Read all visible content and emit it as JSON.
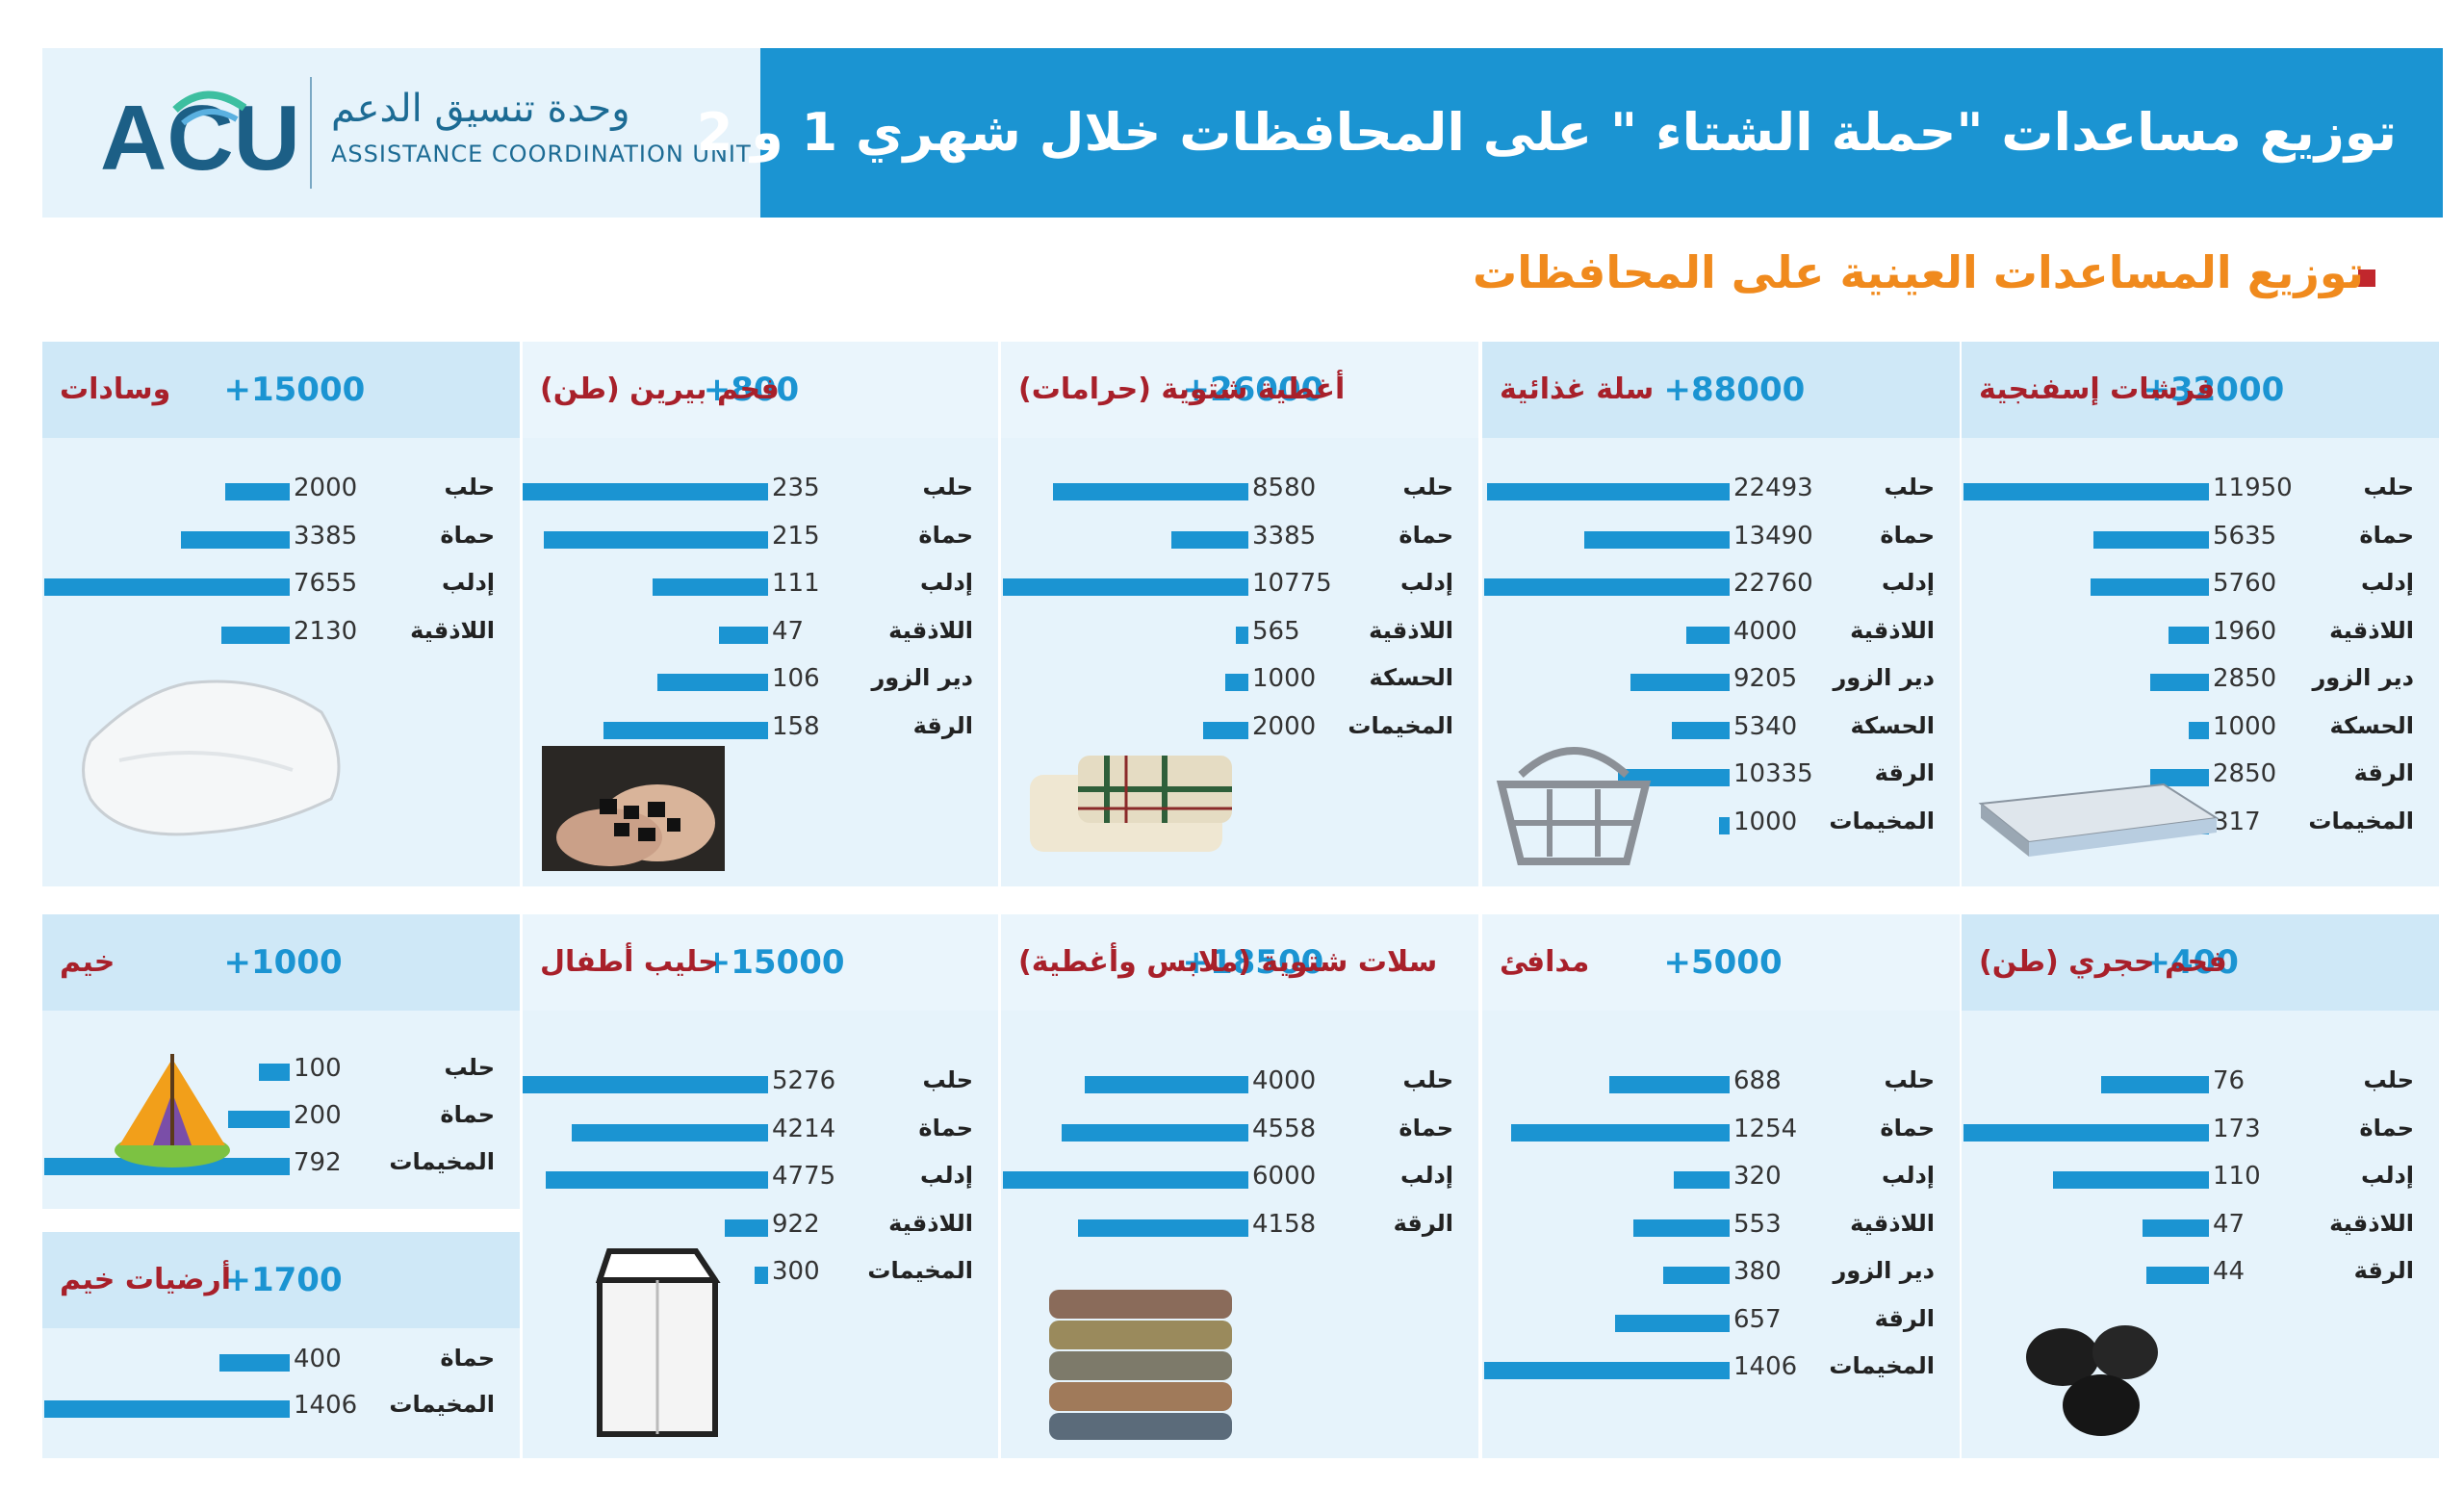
{
  "header": {
    "title": "توزيع مساعدات \"حملة الشتاء \" على المحافظات خلال شهري 1 و 2",
    "logo_mark": "ACU",
    "logo_arabic": "وحدة تنسيق الدعم",
    "logo_english": "ASSISTANCE  COORDINATION UNIT"
  },
  "section_title": "توزيع المساعدات العينية على المحافظات",
  "colors": {
    "header_band": "#1b94d2",
    "bar": "#1b94d2",
    "panel_bg": "#e6f3fb",
    "item_name": "#a8202a",
    "section_title": "#f08a1d"
  },
  "chart_data": [
    {
      "type": "bar",
      "title": "فرشات إسفنجية",
      "total": "32000+",
      "icon": "mattress-icon",
      "categories": [
        "حلب",
        "حماة",
        "إدلب",
        "اللاذقية",
        "دير الزور",
        "الحسكة",
        "الرقة",
        "المخيمات"
      ],
      "values": [
        11950,
        5635,
        5760,
        1960,
        2850,
        1000,
        2850,
        317
      ]
    },
    {
      "type": "bar",
      "title": "سلة غذائية",
      "total": "88000+",
      "icon": "basket-icon",
      "categories": [
        "حلب",
        "حماة",
        "إدلب",
        "اللاذقية",
        "دير الزور",
        "الحسكة",
        "الرقة",
        "المخيمات"
      ],
      "values": [
        22493,
        13490,
        22760,
        4000,
        9205,
        5340,
        10335,
        1000
      ]
    },
    {
      "type": "bar",
      "title": "أغطية شتوية (حرامات)",
      "total": "26000+",
      "icon": "blanket-icon",
      "categories": [
        "حلب",
        "حماة",
        "إدلب",
        "اللاذقية",
        "الحسكة",
        "المخيمات"
      ],
      "values": [
        8580,
        3385,
        10775,
        565,
        1000,
        2000
      ]
    },
    {
      "type": "bar",
      "title": "فحم بيرين (طن)",
      "total": "800+",
      "icon": "coal-hands-icon",
      "categories": [
        "حلب",
        "حماة",
        "إدلب",
        "اللاذقية",
        "دير الزور",
        "الرقة"
      ],
      "values": [
        235,
        215,
        111,
        47,
        106,
        158
      ]
    },
    {
      "type": "bar",
      "title": "وسادات",
      "total": "15000+",
      "icon": "pillow-icon",
      "categories": [
        "حلب",
        "حماة",
        "إدلب",
        "اللاذقية"
      ],
      "values": [
        2000,
        3385,
        7655,
        2130
      ]
    },
    {
      "type": "bar",
      "title": "فحم حجري (طن)",
      "total": "400+",
      "icon": "coal-icon",
      "categories": [
        "حلب",
        "حماة",
        "إدلب",
        "اللاذقية",
        "الرقة"
      ],
      "values": [
        76,
        173,
        110,
        47,
        44
      ]
    },
    {
      "type": "bar",
      "title": "مدافئ",
      "total": "5000+",
      "icon": "heater-icon",
      "categories": [
        "حلب",
        "حماة",
        "إدلب",
        "اللاذقية",
        "دير الزور",
        "الرقة",
        "المخيمات"
      ],
      "values": [
        688,
        1254,
        320,
        553,
        380,
        657,
        1406
      ]
    },
    {
      "type": "bar",
      "title": "سلات شتوية (ملابس وأغطية)",
      "total": "18500+",
      "icon": "clothes-stack-icon",
      "categories": [
        "حلب",
        "حماة",
        "إدلب",
        "الرقة"
      ],
      "values": [
        4000,
        4558,
        6000,
        4158
      ]
    },
    {
      "type": "bar",
      "title": "حليب أطفال",
      "total": "15000+",
      "icon": "milk-carton-icon",
      "categories": [
        "حلب",
        "حماة",
        "إدلب",
        "اللاذقية",
        "المخيمات"
      ],
      "values": [
        5276,
        4214,
        4775,
        922,
        300
      ]
    },
    {
      "type": "bar",
      "title": "خيم",
      "total": "1000+",
      "icon": "tent-icon",
      "categories": [
        "حلب",
        "حماة",
        "المخيمات"
      ],
      "values": [
        100,
        200,
        792
      ]
    },
    {
      "type": "bar",
      "title": "أرضيات خيم",
      "total": "1700+",
      "icon": "",
      "categories": [
        "حماة",
        "المخيمات"
      ],
      "values": [
        400,
        1406
      ]
    }
  ]
}
